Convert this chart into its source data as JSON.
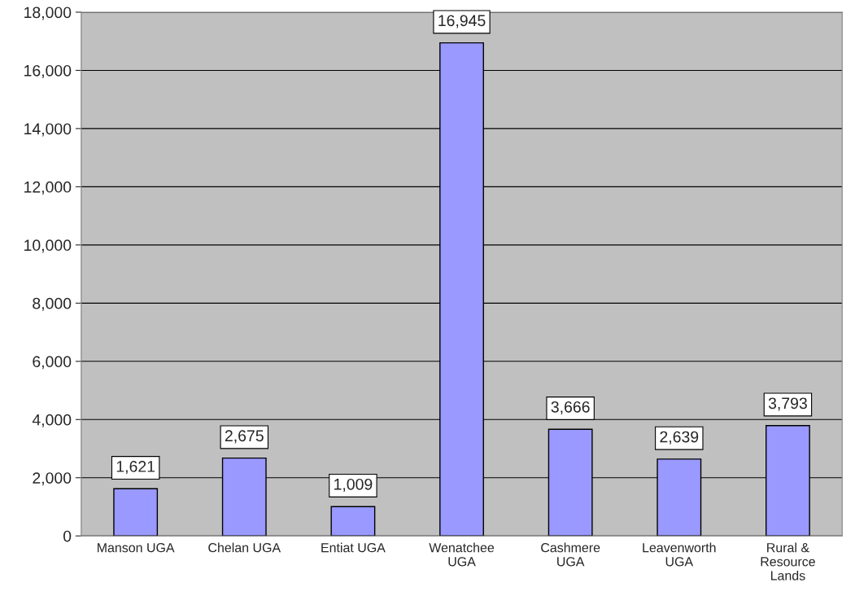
{
  "chart_data": {
    "type": "bar",
    "categories": [
      "Manson UGA",
      "Chelan UGA",
      "Entiat UGA",
      "Wenatchee\nUGA",
      "Cashmere\nUGA",
      "Leavenworth\nUGA",
      "Rural &\nResource\nLands"
    ],
    "values": [
      1621,
      2675,
      1009,
      16945,
      3666,
      2639,
      3793
    ],
    "color": "#9999ff",
    "ylim": [
      0,
      18000
    ],
    "yticks": [
      {
        "value": 0,
        "label": "0"
      },
      {
        "value": 2000,
        "label": "2,000"
      },
      {
        "value": 4000,
        "label": "4,000"
      },
      {
        "value": 6000,
        "label": "6,000"
      },
      {
        "value": 8000,
        "label": "8,000"
      },
      {
        "value": 10000,
        "label": "10,000"
      },
      {
        "value": 12000,
        "label": "12,000"
      },
      {
        "value": 14000,
        "label": "14,000"
      },
      {
        "value": 16000,
        "label": "16,000"
      },
      {
        "value": 18000,
        "label": "18,000"
      }
    ],
    "value_labels": [
      "1,621",
      "2,675",
      "1,009",
      "16,945",
      "3,666",
      "2,639",
      "3,793"
    ],
    "grid": "y"
  }
}
